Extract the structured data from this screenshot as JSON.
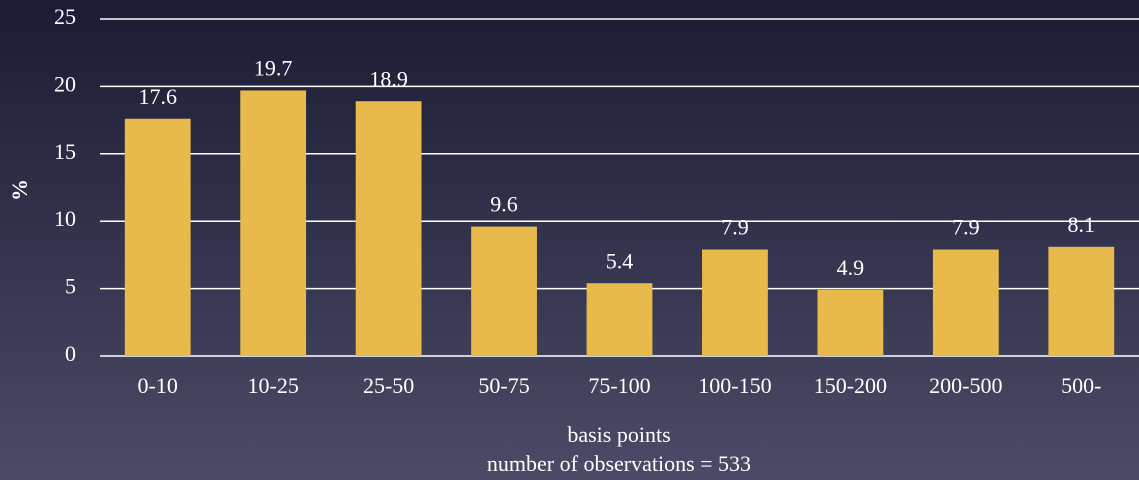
{
  "chart_data": {
    "type": "bar",
    "ylabel": "%",
    "xlabel": [
      "basis points",
      "number of observations = 533"
    ],
    "categories": [
      "0-10",
      "10-25",
      "25-50",
      "50-75",
      "75-100",
      "100-150",
      "150-200",
      "200-500",
      "500-"
    ],
    "values": [
      17.6,
      19.7,
      18.9,
      9.6,
      5.4,
      7.9,
      4.9,
      7.9,
      8.1
    ],
    "color": "#e8b94b",
    "ylim": [
      0,
      25
    ],
    "yticks": [
      0,
      5,
      10,
      15,
      20,
      25
    ],
    "grid": true
  }
}
